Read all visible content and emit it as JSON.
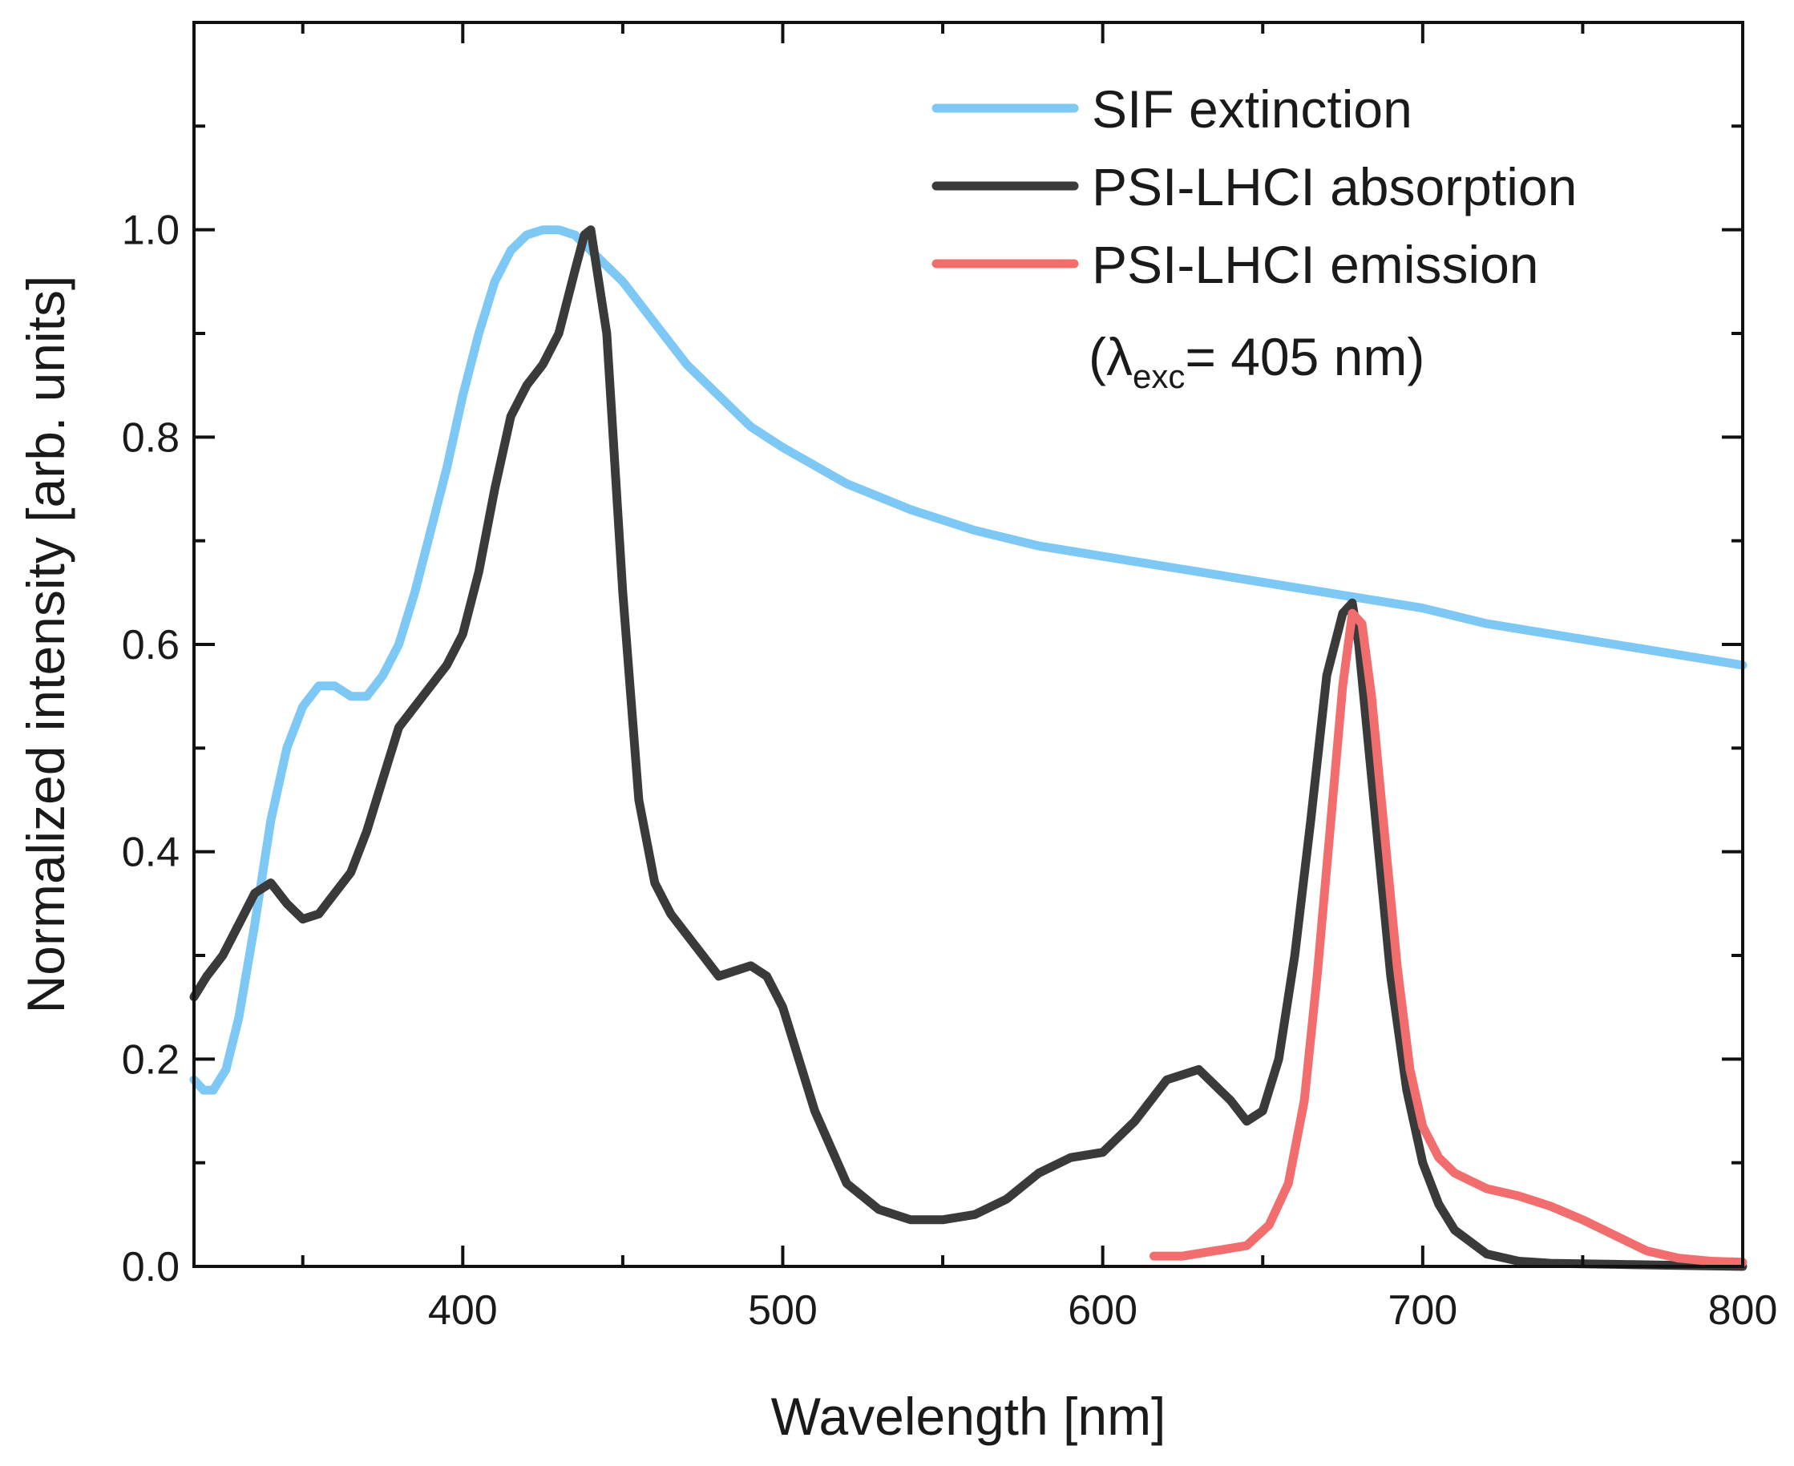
{
  "chart_data": {
    "type": "line",
    "title": "",
    "xlabel": "Wavelength [nm]",
    "ylabel": "Normalized intensity [arb. units]",
    "xlim": [
      316,
      800
    ],
    "ylim": [
      0,
      1.2
    ],
    "x_ticks": [
      400,
      500,
      600,
      700,
      800
    ],
    "y_ticks": [
      0.0,
      0.2,
      0.4,
      0.6,
      0.8,
      1.0
    ],
    "x_tick_labels": [
      "400",
      "500",
      "600",
      "700",
      "800"
    ],
    "y_tick_labels": [
      "0.0",
      "0.2",
      "0.4",
      "0.6",
      "0.8",
      "1.0"
    ],
    "x_minor_step": 50,
    "y_minor_step": 0.1,
    "grid": false,
    "legend_position": "top-right",
    "legend_note": {
      "prefix": "(λ",
      "subscript": "exc",
      "suffix": "= 405 nm)"
    },
    "series": [
      {
        "name": "SIF extinction",
        "color": "#7ec8f5",
        "x": [
          316,
          319,
          322,
          326,
          330,
          335,
          340,
          345,
          350,
          355,
          360,
          365,
          370,
          375,
          380,
          385,
          390,
          395,
          400,
          405,
          410,
          415,
          420,
          425,
          430,
          435,
          440,
          445,
          450,
          460,
          470,
          480,
          490,
          500,
          520,
          540,
          560,
          580,
          600,
          620,
          640,
          660,
          680,
          700,
          720,
          740,
          760,
          780,
          800
        ],
        "y": [
          0.18,
          0.17,
          0.17,
          0.19,
          0.24,
          0.33,
          0.43,
          0.5,
          0.54,
          0.56,
          0.56,
          0.55,
          0.55,
          0.57,
          0.6,
          0.65,
          0.71,
          0.77,
          0.84,
          0.9,
          0.95,
          0.98,
          0.995,
          1.0,
          1.0,
          0.995,
          0.98,
          0.965,
          0.95,
          0.91,
          0.87,
          0.84,
          0.81,
          0.79,
          0.755,
          0.73,
          0.71,
          0.695,
          0.685,
          0.675,
          0.665,
          0.655,
          0.645,
          0.635,
          0.62,
          0.61,
          0.6,
          0.59,
          0.58
        ]
      },
      {
        "name": "PSI-LHCI absorption",
        "color": "#3a3a3a",
        "x": [
          316,
          320,
          325,
          330,
          335,
          340,
          345,
          350,
          355,
          360,
          365,
          370,
          375,
          380,
          385,
          390,
          395,
          400,
          405,
          410,
          415,
          420,
          425,
          430,
          435,
          438,
          440,
          445,
          450,
          455,
          460,
          465,
          470,
          475,
          480,
          490,
          495,
          500,
          510,
          520,
          530,
          540,
          550,
          560,
          570,
          580,
          590,
          600,
          610,
          620,
          630,
          640,
          645,
          650,
          655,
          660,
          665,
          670,
          675,
          678,
          680,
          685,
          690,
          695,
          700,
          705,
          710,
          720,
          730,
          740,
          760,
          780,
          800
        ],
        "y": [
          0.26,
          0.28,
          0.3,
          0.33,
          0.36,
          0.37,
          0.35,
          0.335,
          0.34,
          0.36,
          0.38,
          0.42,
          0.47,
          0.52,
          0.54,
          0.56,
          0.58,
          0.61,
          0.67,
          0.75,
          0.82,
          0.85,
          0.87,
          0.9,
          0.96,
          0.995,
          1.0,
          0.9,
          0.65,
          0.45,
          0.37,
          0.34,
          0.32,
          0.3,
          0.28,
          0.29,
          0.28,
          0.25,
          0.15,
          0.08,
          0.055,
          0.045,
          0.045,
          0.05,
          0.065,
          0.09,
          0.105,
          0.11,
          0.14,
          0.18,
          0.19,
          0.16,
          0.14,
          0.15,
          0.2,
          0.3,
          0.43,
          0.57,
          0.63,
          0.64,
          0.6,
          0.44,
          0.28,
          0.17,
          0.1,
          0.06,
          0.035,
          0.012,
          0.005,
          0.003,
          0.002,
          0.001,
          0.0
        ]
      },
      {
        "name": "PSI-LHCI emission",
        "color": "#f26d6d",
        "x": [
          616,
          625,
          635,
          645,
          652,
          658,
          663,
          667,
          671,
          675,
          678,
          681,
          684,
          688,
          692,
          696,
          700,
          705,
          710,
          720,
          730,
          740,
          750,
          760,
          770,
          780,
          790,
          800
        ],
        "y": [
          0.01,
          0.01,
          0.015,
          0.02,
          0.04,
          0.08,
          0.16,
          0.28,
          0.42,
          0.56,
          0.63,
          0.62,
          0.55,
          0.42,
          0.29,
          0.19,
          0.135,
          0.105,
          0.09,
          0.075,
          0.068,
          0.058,
          0.045,
          0.03,
          0.015,
          0.008,
          0.005,
          0.004
        ]
      }
    ]
  }
}
